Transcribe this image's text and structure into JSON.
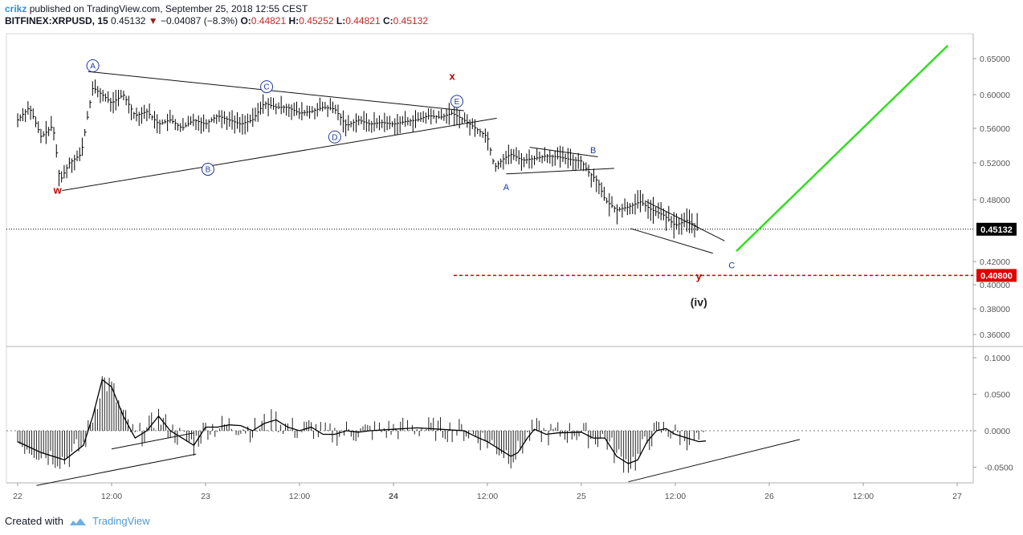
{
  "header": {
    "author": "crikz",
    "published": "published on TradingView.com, September 25, 2018 12:55 CEST",
    "symbol": "BITFINEX:XRPUSD, 15",
    "last": "0.45132",
    "change": "−0.04087 (−8.3%)",
    "o_label": "O:",
    "o_value": "0.44821",
    "h_label": "H:",
    "h_value": "0.45252",
    "l_label": "L:",
    "l_value": "0.44821",
    "c_label": "C:",
    "c_value": "0.45132"
  },
  "footer": {
    "created_with": "Created with",
    "brand": "TradingView",
    "icon": "tradingview-cloud-icon"
  },
  "colors": {
    "price": "#000000",
    "accent_red": "#c00000",
    "wave_blue": "#1e3a9e",
    "target_green": "#33dd22",
    "label_bg": "#e00000"
  },
  "chart_data": [
    {
      "type": "bar",
      "symbol": "BITFINEX:XRPUSD",
      "interval": "15",
      "x_ticks": [
        "22",
        "12:00",
        "23",
        "12:00",
        "24",
        "12:00",
        "25",
        "12:00",
        "26",
        "12:00",
        "27"
      ],
      "y_ticks": [
        "0.65000",
        "0.60000",
        "0.56000",
        "0.52000",
        "0.48000",
        "0.42000",
        "0.40000",
        "0.38000",
        "0.36000"
      ],
      "ylim": [
        0.345,
        0.668
      ],
      "price_label": "0.45132",
      "target_label": "0.40800",
      "target_level": 0.408,
      "price_path": [
        [
          0,
          0.57
        ],
        [
          0.5,
          0.585
        ],
        [
          1,
          0.55
        ],
        [
          1.5,
          0.563
        ],
        [
          1.8,
          0.5
        ],
        [
          2.2,
          0.52
        ],
        [
          2.7,
          0.53
        ],
        [
          3.2,
          0.61
        ],
        [
          3.6,
          0.6
        ],
        [
          4,
          0.59
        ],
        [
          4.5,
          0.6
        ],
        [
          5,
          0.575
        ],
        [
          5.5,
          0.58
        ],
        [
          6,
          0.565
        ],
        [
          6.5,
          0.57
        ],
        [
          7,
          0.56
        ],
        [
          7.5,
          0.57
        ],
        [
          8,
          0.565
        ],
        [
          8.5,
          0.575
        ],
        [
          9,
          0.57
        ],
        [
          9.5,
          0.565
        ],
        [
          10,
          0.57
        ],
        [
          10.5,
          0.59
        ],
        [
          11,
          0.585
        ],
        [
          11.5,
          0.585
        ],
        [
          12,
          0.578
        ],
        [
          12.5,
          0.58
        ],
        [
          13,
          0.585
        ],
        [
          13.5,
          0.583
        ],
        [
          14,
          0.563
        ],
        [
          14.5,
          0.57
        ],
        [
          15,
          0.565
        ],
        [
          15.5,
          0.567
        ],
        [
          16,
          0.565
        ],
        [
          16.5,
          0.568
        ],
        [
          17,
          0.57
        ],
        [
          17.5,
          0.575
        ],
        [
          18,
          0.573
        ],
        [
          18.5,
          0.578
        ],
        [
          19,
          0.57
        ],
        [
          19.5,
          0.56
        ],
        [
          20,
          0.55
        ],
        [
          20.3,
          0.515
        ],
        [
          20.7,
          0.525
        ],
        [
          21,
          0.53
        ],
        [
          21.5,
          0.523
        ],
        [
          22,
          0.525
        ],
        [
          22.5,
          0.528
        ],
        [
          23,
          0.527
        ],
        [
          23.5,
          0.524
        ],
        [
          24,
          0.522
        ],
        [
          24.3,
          0.51
        ],
        [
          24.7,
          0.5
        ],
        [
          25,
          0.48
        ],
        [
          25.5,
          0.47
        ],
        [
          26,
          0.473
        ],
        [
          26.5,
          0.478
        ],
        [
          27,
          0.47
        ],
        [
          27.5,
          0.465
        ],
        [
          28,
          0.455
        ],
        [
          28.5,
          0.46
        ],
        [
          29,
          0.452
        ]
      ],
      "wave_labels": [
        {
          "text": "A",
          "circled": true,
          "x": 3.2,
          "y": 0.64
        },
        {
          "text": "B",
          "circled": true,
          "x": 8.1,
          "y": 0.513
        },
        {
          "text": "C",
          "circled": true,
          "x": 10.6,
          "y": 0.611
        },
        {
          "text": "D",
          "circled": true,
          "x": 13.5,
          "y": 0.55
        },
        {
          "text": "E",
          "circled": true,
          "x": 18.7,
          "y": 0.592
        },
        {
          "text": "w",
          "color": "red",
          "x": 1.7,
          "y": 0.49
        },
        {
          "text": "x",
          "color": "red",
          "x": 18.5,
          "y": 0.625
        },
        {
          "text": "y",
          "color": "red",
          "x": 29.0,
          "y": 0.407
        },
        {
          "text": "(iv)",
          "color": "black",
          "x": 29.0,
          "y": 0.385
        },
        {
          "text": "A",
          "x": 20.8,
          "y": 0.494
        },
        {
          "text": "B",
          "x": 24.5,
          "y": 0.535
        },
        {
          "text": "C",
          "x": 30.4,
          "y": 0.417
        }
      ],
      "trendlines": [
        {
          "name": "triangle-upper",
          "from": [
            3,
            0.632
          ],
          "to": [
            19,
            0.581
          ]
        },
        {
          "name": "triangle-lower",
          "from": [
            1.9,
            0.49
          ],
          "to": [
            20.4,
            0.572
          ]
        },
        {
          "name": "flag-upper",
          "from": [
            21.8,
            0.538
          ],
          "to": [
            24.7,
            0.527
          ]
        },
        {
          "name": "flag-lower",
          "from": [
            20.8,
            0.508
          ],
          "to": [
            25.4,
            0.514
          ]
        },
        {
          "name": "wedge-upper",
          "from": [
            26.7,
            0.479
          ],
          "to": [
            30.1,
            0.44
          ]
        },
        {
          "name": "wedge-lower",
          "from": [
            26.1,
            0.452
          ],
          "to": [
            29.6,
            0.428
          ]
        },
        {
          "name": "projection",
          "from": [
            30.6,
            0.43
          ],
          "to": [
            39.6,
            0.668
          ],
          "color": "green"
        }
      ]
    },
    {
      "type": "line",
      "panel": "oscillator",
      "y_ticks": [
        "0.1000",
        "0.0500",
        "0.0000",
        "-0.0500"
      ],
      "ylim": [
        -0.075,
        0.105
      ],
      "histogram_range": [
        -0.06,
        0.1
      ],
      "line_path": [
        [
          0,
          -0.015
        ],
        [
          1,
          -0.03
        ],
        [
          2,
          -0.04
        ],
        [
          2.8,
          -0.02
        ],
        [
          3.2,
          0.02
        ],
        [
          3.6,
          0.07
        ],
        [
          4,
          0.06
        ],
        [
          4.5,
          0.02
        ],
        [
          5,
          -0.01
        ],
        [
          5.5,
          0.0
        ],
        [
          6,
          0.02
        ],
        [
          6.5,
          0.0
        ],
        [
          7,
          -0.01
        ],
        [
          7.5,
          -0.02
        ],
        [
          8,
          0.005
        ],
        [
          8.5,
          0.005
        ],
        [
          9,
          0.008
        ],
        [
          9.5,
          0.007
        ],
        [
          10,
          0.0
        ],
        [
          10.5,
          0.01
        ],
        [
          11,
          0.015
        ],
        [
          11.5,
          0.005
        ],
        [
          12,
          0.0
        ],
        [
          12.5,
          0.005
        ],
        [
          13,
          -0.005
        ],
        [
          13.5,
          -0.005
        ],
        [
          14,
          0.0
        ],
        [
          14.5,
          -0.002
        ],
        [
          15,
          0.0
        ],
        [
          16,
          0.002
        ],
        [
          17,
          0.004
        ],
        [
          18,
          0.002
        ],
        [
          19,
          0.0
        ],
        [
          19.5,
          -0.008
        ],
        [
          20,
          -0.015
        ],
        [
          20.5,
          -0.025
        ],
        [
          21,
          -0.035
        ],
        [
          21.3,
          -0.03
        ],
        [
          21.7,
          -0.01
        ],
        [
          22,
          0.002
        ],
        [
          22.5,
          -0.005
        ],
        [
          23,
          -0.003
        ],
        [
          24,
          -0.002
        ],
        [
          24.5,
          -0.01
        ],
        [
          25,
          -0.01
        ],
        [
          25.5,
          -0.035
        ],
        [
          26,
          -0.045
        ],
        [
          26.4,
          -0.04
        ],
        [
          26.8,
          -0.015
        ],
        [
          27.2,
          0.0
        ],
        [
          27.6,
          0.003
        ],
        [
          28,
          -0.005
        ],
        [
          28.5,
          -0.01
        ],
        [
          29,
          -0.015
        ],
        [
          29.3,
          -0.014
        ]
      ],
      "trendlines": [
        {
          "name": "osc-upper",
          "from": [
            4,
            -0.025
          ],
          "to": [
            7.5,
            -0.003
          ]
        },
        {
          "name": "osc-lower",
          "from": [
            0.8,
            -0.075
          ],
          "to": [
            7.6,
            -0.032
          ]
        },
        {
          "name": "osc-rising",
          "from": [
            26,
            -0.07
          ],
          "to": [
            33.3,
            -0.012
          ]
        }
      ]
    }
  ]
}
